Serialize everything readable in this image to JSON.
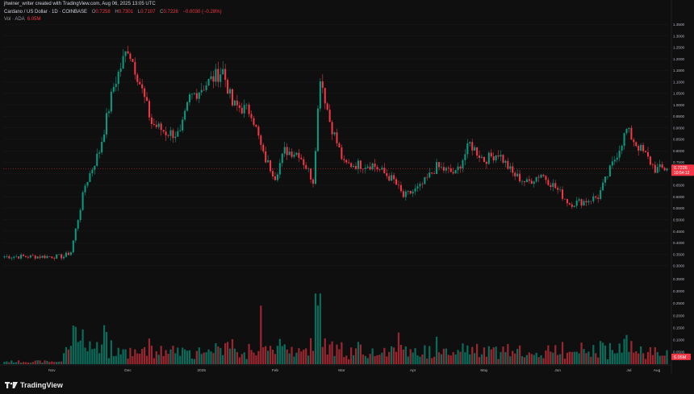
{
  "header": {
    "created_line": "jhwiner_writer created with TradingView.com, Aug 06, 2025 13:05 UTC",
    "symbol": "Cardano / US Dollar · 1D · COINBASE",
    "o_label": "O",
    "o_value": "0.7258",
    "h_label": "H",
    "h_value": "0.7301",
    "l_label": "L",
    "l_value": "0.7107",
    "c_label": "C",
    "c_value": "0.7226",
    "change": "−0.0030 (−0.28%)",
    "vol_label": "Vol · ADA",
    "vol_value": "6.05M"
  },
  "price_tag": {
    "price": "0.7226",
    "countdown": "10:54:12"
  },
  "volume_tag": "6.05M",
  "footer": {
    "logo_text": "TradingView"
  },
  "colors": {
    "up": "#089981",
    "down": "#f23645",
    "background": "#0f0f0f",
    "grid": "#1e1e1e"
  },
  "chart_data": {
    "type": "candlestick",
    "x_axis_labels": [
      "Nov",
      "Dec",
      "2025",
      "Feb",
      "Mar",
      "Apr",
      "May",
      "Jun",
      "Jul",
      "Aug"
    ],
    "price_axis_labels": [
      "1.3500",
      "1.3000",
      "1.2500",
      "1.2000",
      "1.1500",
      "1.1000",
      "1.0500",
      "1.0000",
      "0.9500",
      "0.9000",
      "0.8500",
      "0.8000",
      "0.7500",
      "0.7000",
      "0.6500",
      "0.6000",
      "0.5500",
      "0.5000",
      "0.4500",
      "0.4000",
      "0.3500",
      "0.3000"
    ],
    "volume_axis_labels": [
      "0.3500",
      "0.3000",
      "0.2500",
      "0.2000",
      "0.1500",
      "0.1000",
      "0.0500"
    ],
    "price_range": [
      0.25,
      1.4
    ],
    "volume_range": [
      0,
      0.37
    ],
    "candle_count": 280,
    "key_points": [
      {
        "index": 0,
        "price": 0.34
      },
      {
        "index": 25,
        "price": 0.34
      },
      {
        "index": 28,
        "price": 0.36
      },
      {
        "index": 34,
        "price": 0.65
      },
      {
        "index": 40,
        "price": 0.8
      },
      {
        "index": 46,
        "price": 1.08
      },
      {
        "index": 52,
        "price": 1.25
      },
      {
        "index": 56,
        "price": 1.13
      },
      {
        "index": 62,
        "price": 0.92
      },
      {
        "index": 68,
        "price": 0.88
      },
      {
        "index": 74,
        "price": 0.87
      },
      {
        "index": 78,
        "price": 1.03
      },
      {
        "index": 86,
        "price": 1.1
      },
      {
        "index": 92,
        "price": 1.15
      },
      {
        "index": 96,
        "price": 1.0
      },
      {
        "index": 104,
        "price": 0.97
      },
      {
        "index": 109,
        "price": 0.78
      },
      {
        "index": 114,
        "price": 0.69
      },
      {
        "index": 118,
        "price": 0.8
      },
      {
        "index": 124,
        "price": 0.79
      },
      {
        "index": 130,
        "price": 0.67
      },
      {
        "index": 133,
        "price": 1.13
      },
      {
        "index": 137,
        "price": 0.93
      },
      {
        "index": 143,
        "price": 0.74
      },
      {
        "index": 155,
        "price": 0.74
      },
      {
        "index": 164,
        "price": 0.67
      },
      {
        "index": 168,
        "price": 0.6
      },
      {
        "index": 175,
        "price": 0.64
      },
      {
        "index": 182,
        "price": 0.73
      },
      {
        "index": 190,
        "price": 0.7
      },
      {
        "index": 196,
        "price": 0.83
      },
      {
        "index": 202,
        "price": 0.76
      },
      {
        "index": 208,
        "price": 0.79
      },
      {
        "index": 214,
        "price": 0.7
      },
      {
        "index": 220,
        "price": 0.66
      },
      {
        "index": 226,
        "price": 0.7
      },
      {
        "index": 232,
        "price": 0.64
      },
      {
        "index": 238,
        "price": 0.57
      },
      {
        "index": 244,
        "price": 0.58
      },
      {
        "index": 250,
        "price": 0.6
      },
      {
        "index": 256,
        "price": 0.74
      },
      {
        "index": 262,
        "price": 0.89
      },
      {
        "index": 266,
        "price": 0.83
      },
      {
        "index": 270,
        "price": 0.78
      },
      {
        "index": 274,
        "price": 0.72
      },
      {
        "index": 279,
        "price": 0.7226
      }
    ],
    "volume_spikes": [
      {
        "index": 42,
        "volume": 0.16
      },
      {
        "index": 108,
        "volume": 0.24
      },
      {
        "index": 131,
        "volume": 0.29
      },
      {
        "index": 133,
        "volume": 0.29
      },
      {
        "index": 166,
        "volume": 0.13
      },
      {
        "index": 262,
        "volume": 0.12
      }
    ]
  }
}
